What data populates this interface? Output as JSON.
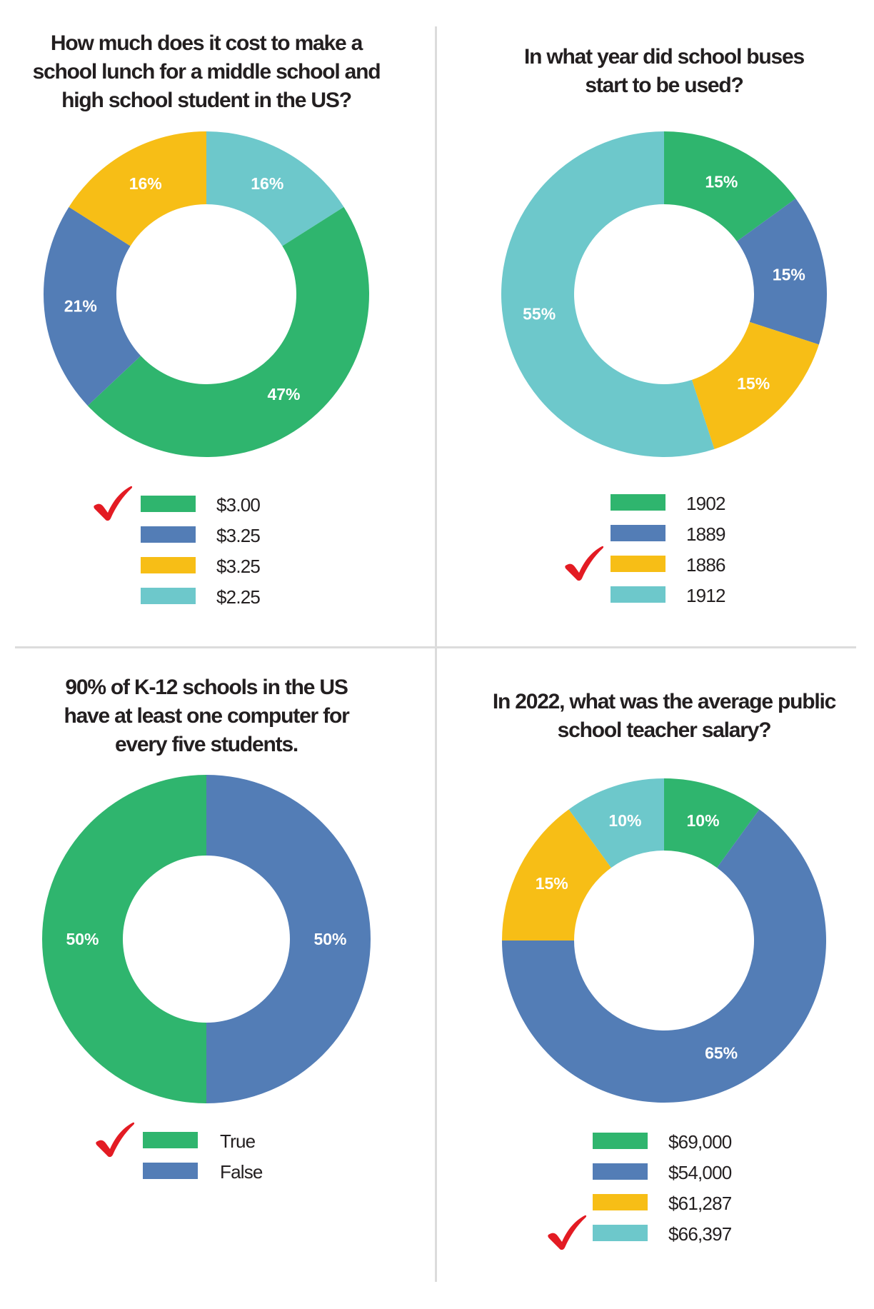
{
  "colors": {
    "green": "#2fb56e",
    "blue": "#537db6",
    "yellow": "#f7be16",
    "cyan": "#6dc8cb",
    "check": "#e31b23",
    "label": "#ffffff"
  },
  "chart_data": [
    {
      "type": "pie",
      "subtype": "donut",
      "title_lines": [
        "How much does it cost to make a",
        "school lunch for a middle school and",
        "high school student in the US?"
      ],
      "legend": [
        {
          "label": "$3.00",
          "color": "green",
          "correct": true
        },
        {
          "label": "$3.25",
          "color": "blue",
          "correct": false
        },
        {
          "label": "$3.25",
          "color": "yellow",
          "correct": false
        },
        {
          "label": "$2.25",
          "color": "cyan",
          "correct": false
        }
      ],
      "slices": [
        {
          "legend": 3,
          "value": 16,
          "label": "16%"
        },
        {
          "legend": 0,
          "value": 47,
          "label": "47%"
        },
        {
          "legend": 1,
          "value": 21,
          "label": "21%"
        },
        {
          "legend": 2,
          "value": 16,
          "label": "16%"
        }
      ]
    },
    {
      "type": "pie",
      "subtype": "donut",
      "title_lines": [
        "In what year did school buses",
        "start to be used?"
      ],
      "legend": [
        {
          "label": "1902",
          "color": "green",
          "correct": false
        },
        {
          "label": "1889",
          "color": "blue",
          "correct": false
        },
        {
          "label": "1886",
          "color": "yellow",
          "correct": true
        },
        {
          "label": "1912",
          "color": "cyan",
          "correct": false
        }
      ],
      "slices": [
        {
          "legend": 0,
          "value": 15,
          "label": "15%"
        },
        {
          "legend": 1,
          "value": 15,
          "label": "15%"
        },
        {
          "legend": 2,
          "value": 15,
          "label": "15%"
        },
        {
          "legend": 3,
          "value": 55,
          "label": "55%"
        }
      ]
    },
    {
      "type": "pie",
      "subtype": "donut",
      "title_lines": [
        "90% of K-12 schools in the US",
        "have at least one computer for",
        "every five students."
      ],
      "legend": [
        {
          "label": "True",
          "color": "green",
          "correct": true
        },
        {
          "label": "False",
          "color": "blue",
          "correct": false
        }
      ],
      "slices": [
        {
          "legend": 1,
          "value": 50,
          "label": "50%"
        },
        {
          "legend": 0,
          "value": 50,
          "label": "50%"
        }
      ]
    },
    {
      "type": "pie",
      "subtype": "donut",
      "title_lines": [
        "In 2022, what was the average public",
        "school teacher salary?"
      ],
      "legend": [
        {
          "label": "$69,000",
          "color": "green",
          "correct": false
        },
        {
          "label": "$54,000",
          "color": "blue",
          "correct": false
        },
        {
          "label": "$61,287",
          "color": "yellow",
          "correct": false
        },
        {
          "label": "$66,397",
          "color": "cyan",
          "correct": true
        }
      ],
      "slices": [
        {
          "legend": 0,
          "value": 10,
          "label": "10%"
        },
        {
          "legend": 1,
          "value": 65,
          "label": "65%"
        },
        {
          "legend": 2,
          "value": 15,
          "label": "15%"
        },
        {
          "legend": 3,
          "value": 10,
          "label": "10%"
        }
      ]
    }
  ]
}
